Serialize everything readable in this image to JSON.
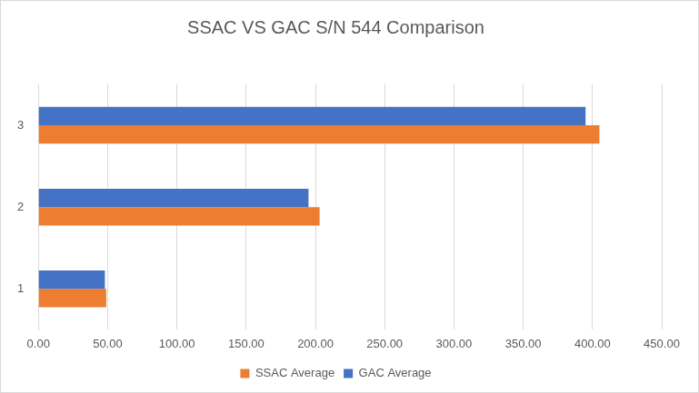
{
  "chart_data": {
    "type": "bar",
    "title": "SSAC VS GAC S/N 544 Comparison",
    "orientation": "horizontal",
    "categories": [
      "1",
      "2",
      "3"
    ],
    "series": [
      {
        "name": "GAC Average",
        "color": "#4472c4",
        "values": [
          48,
          195,
          395
        ]
      },
      {
        "name": "SSAC Average",
        "color": "#ed7d31",
        "values": [
          49,
          203,
          405
        ]
      }
    ],
    "xlim": [
      0,
      450
    ],
    "xticks": [
      {
        "value": 0,
        "label": "0.00"
      },
      {
        "value": 50,
        "label": "50.00"
      },
      {
        "value": 100,
        "label": "100.00"
      },
      {
        "value": 150,
        "label": "150.00"
      },
      {
        "value": 200,
        "label": "200.00"
      },
      {
        "value": 250,
        "label": "250.00"
      },
      {
        "value": 300,
        "label": "300.00"
      },
      {
        "value": 350,
        "label": "350.00"
      },
      {
        "value": 400,
        "label": "400.00"
      },
      {
        "value": 450,
        "label": "450.00"
      }
    ],
    "grid": true,
    "legend": "bottom"
  }
}
